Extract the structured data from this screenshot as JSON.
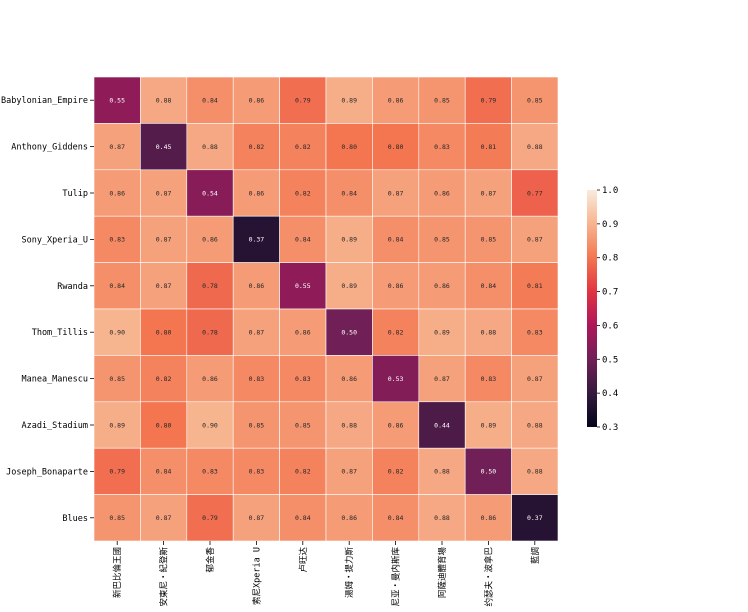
{
  "chart_data": {
    "type": "heatmap",
    "title": "",
    "xlabel": "",
    "ylabel": "",
    "row_labels": [
      "Neo-Babylonian_Empire",
      "Anthony_Giddens",
      "Tulip",
      "Sony_Xperia_U",
      "Rwanda",
      "Thom_Tillis",
      "Manea_Manescu",
      "Azadi_Stadium",
      "Joseph_Bonaparte",
      "Blues"
    ],
    "col_labels": [
      "新巴比倫王國",
      "安東尼・紀登斯",
      "郁金香",
      "索尼Xperia U",
      "卢旺达",
      "湯姆・提力斯",
      "尼亚・曼内斯库",
      "阿薩迪體育場",
      "约瑟夫・波拿巴",
      "藍調"
    ],
    "values": [
      [
        0.55,
        0.88,
        0.84,
        0.86,
        0.79,
        0.89,
        0.86,
        0.85,
        0.79,
        0.85
      ],
      [
        0.87,
        0.45,
        0.88,
        0.82,
        0.82,
        0.8,
        0.8,
        0.83,
        0.81,
        0.88
      ],
      [
        0.86,
        0.87,
        0.54,
        0.86,
        0.82,
        0.84,
        0.87,
        0.86,
        0.87,
        0.77
      ],
      [
        0.83,
        0.87,
        0.86,
        0.37,
        0.84,
        0.89,
        0.84,
        0.85,
        0.85,
        0.87
      ],
      [
        0.84,
        0.87,
        0.78,
        0.86,
        0.55,
        0.89,
        0.86,
        0.86,
        0.84,
        0.81
      ],
      [
        0.9,
        0.8,
        0.78,
        0.87,
        0.86,
        0.5,
        0.82,
        0.89,
        0.88,
        0.83
      ],
      [
        0.85,
        0.82,
        0.86,
        0.83,
        0.83,
        0.86,
        0.53,
        0.87,
        0.83,
        0.87
      ],
      [
        0.89,
        0.8,
        0.9,
        0.85,
        0.85,
        0.88,
        0.86,
        0.44,
        0.89,
        0.88
      ],
      [
        0.79,
        0.84,
        0.83,
        0.83,
        0.82,
        0.87,
        0.82,
        0.88,
        0.5,
        0.88
      ],
      [
        0.85,
        0.87,
        0.79,
        0.87,
        0.84,
        0.86,
        0.84,
        0.88,
        0.86,
        0.37
      ]
    ],
    "value_labels": [
      [
        "0.55",
        "0.88",
        "0.84",
        "0.86",
        "0.79",
        "0.89",
        "0.86",
        "0.85",
        "0.79",
        "0.85"
      ],
      [
        "0.87",
        "0.45",
        "0.88",
        "0.82",
        "0.82",
        "0.80",
        "0.80",
        "0.83",
        "0.81",
        "0.88"
      ],
      [
        "0.86",
        "0.87",
        "0.54",
        "0.86",
        "0.82",
        "0.84",
        "0.87",
        "0.86",
        "0.87",
        "0.77"
      ],
      [
        "0.83",
        "0.87",
        "0.86",
        "0.37",
        "0.84",
        "0.89",
        "0.84",
        "0.85",
        "0.85",
        "0.87"
      ],
      [
        "0.84",
        "0.87",
        "0.78",
        "0.86",
        "0.55",
        "0.89",
        "0.86",
        "0.86",
        "0.84",
        "0.81"
      ],
      [
        "0.90",
        "0.80",
        "0.78",
        "0.87",
        "0.86",
        "0.50",
        "0.82",
        "0.89",
        "0.88",
        "0.83"
      ],
      [
        "0.85",
        "0.82",
        "0.86",
        "0.83",
        "0.83",
        "0.86",
        "0.53",
        "0.87",
        "0.83",
        "0.87"
      ],
      [
        "0.89",
        "0.80",
        "0.90",
        "0.85",
        "0.85",
        "0.88",
        "0.86",
        "0.44",
        "0.89",
        "0.88"
      ],
      [
        "0.79",
        "0.84",
        "0.83",
        "0.83",
        "0.82",
        "0.87",
        "0.82",
        "0.88",
        "0.50",
        "0.88"
      ],
      [
        "0.85",
        "0.87",
        "0.79",
        "0.87",
        "0.84",
        "0.86",
        "0.84",
        "0.88",
        "0.86",
        "0.37"
      ]
    ],
    "colorbar": {
      "min": 0.3,
      "max": 1.0,
      "ticks": [
        0.3,
        0.4,
        0.5,
        0.6,
        0.7,
        0.8,
        0.9,
        1.0
      ],
      "tick_labels": [
        "0.3",
        "0.4",
        "0.5",
        "0.6",
        "0.7",
        "0.8",
        "0.9",
        "1.0"
      ],
      "colormap": "rocket",
      "color_stops": [
        "#03051a",
        "#35193e",
        "#701f57",
        "#ad1759",
        "#e13342",
        "#f37651",
        "#f6b48f",
        "#faebdd"
      ]
    },
    "grid": false,
    "legend": "colorbar right"
  }
}
